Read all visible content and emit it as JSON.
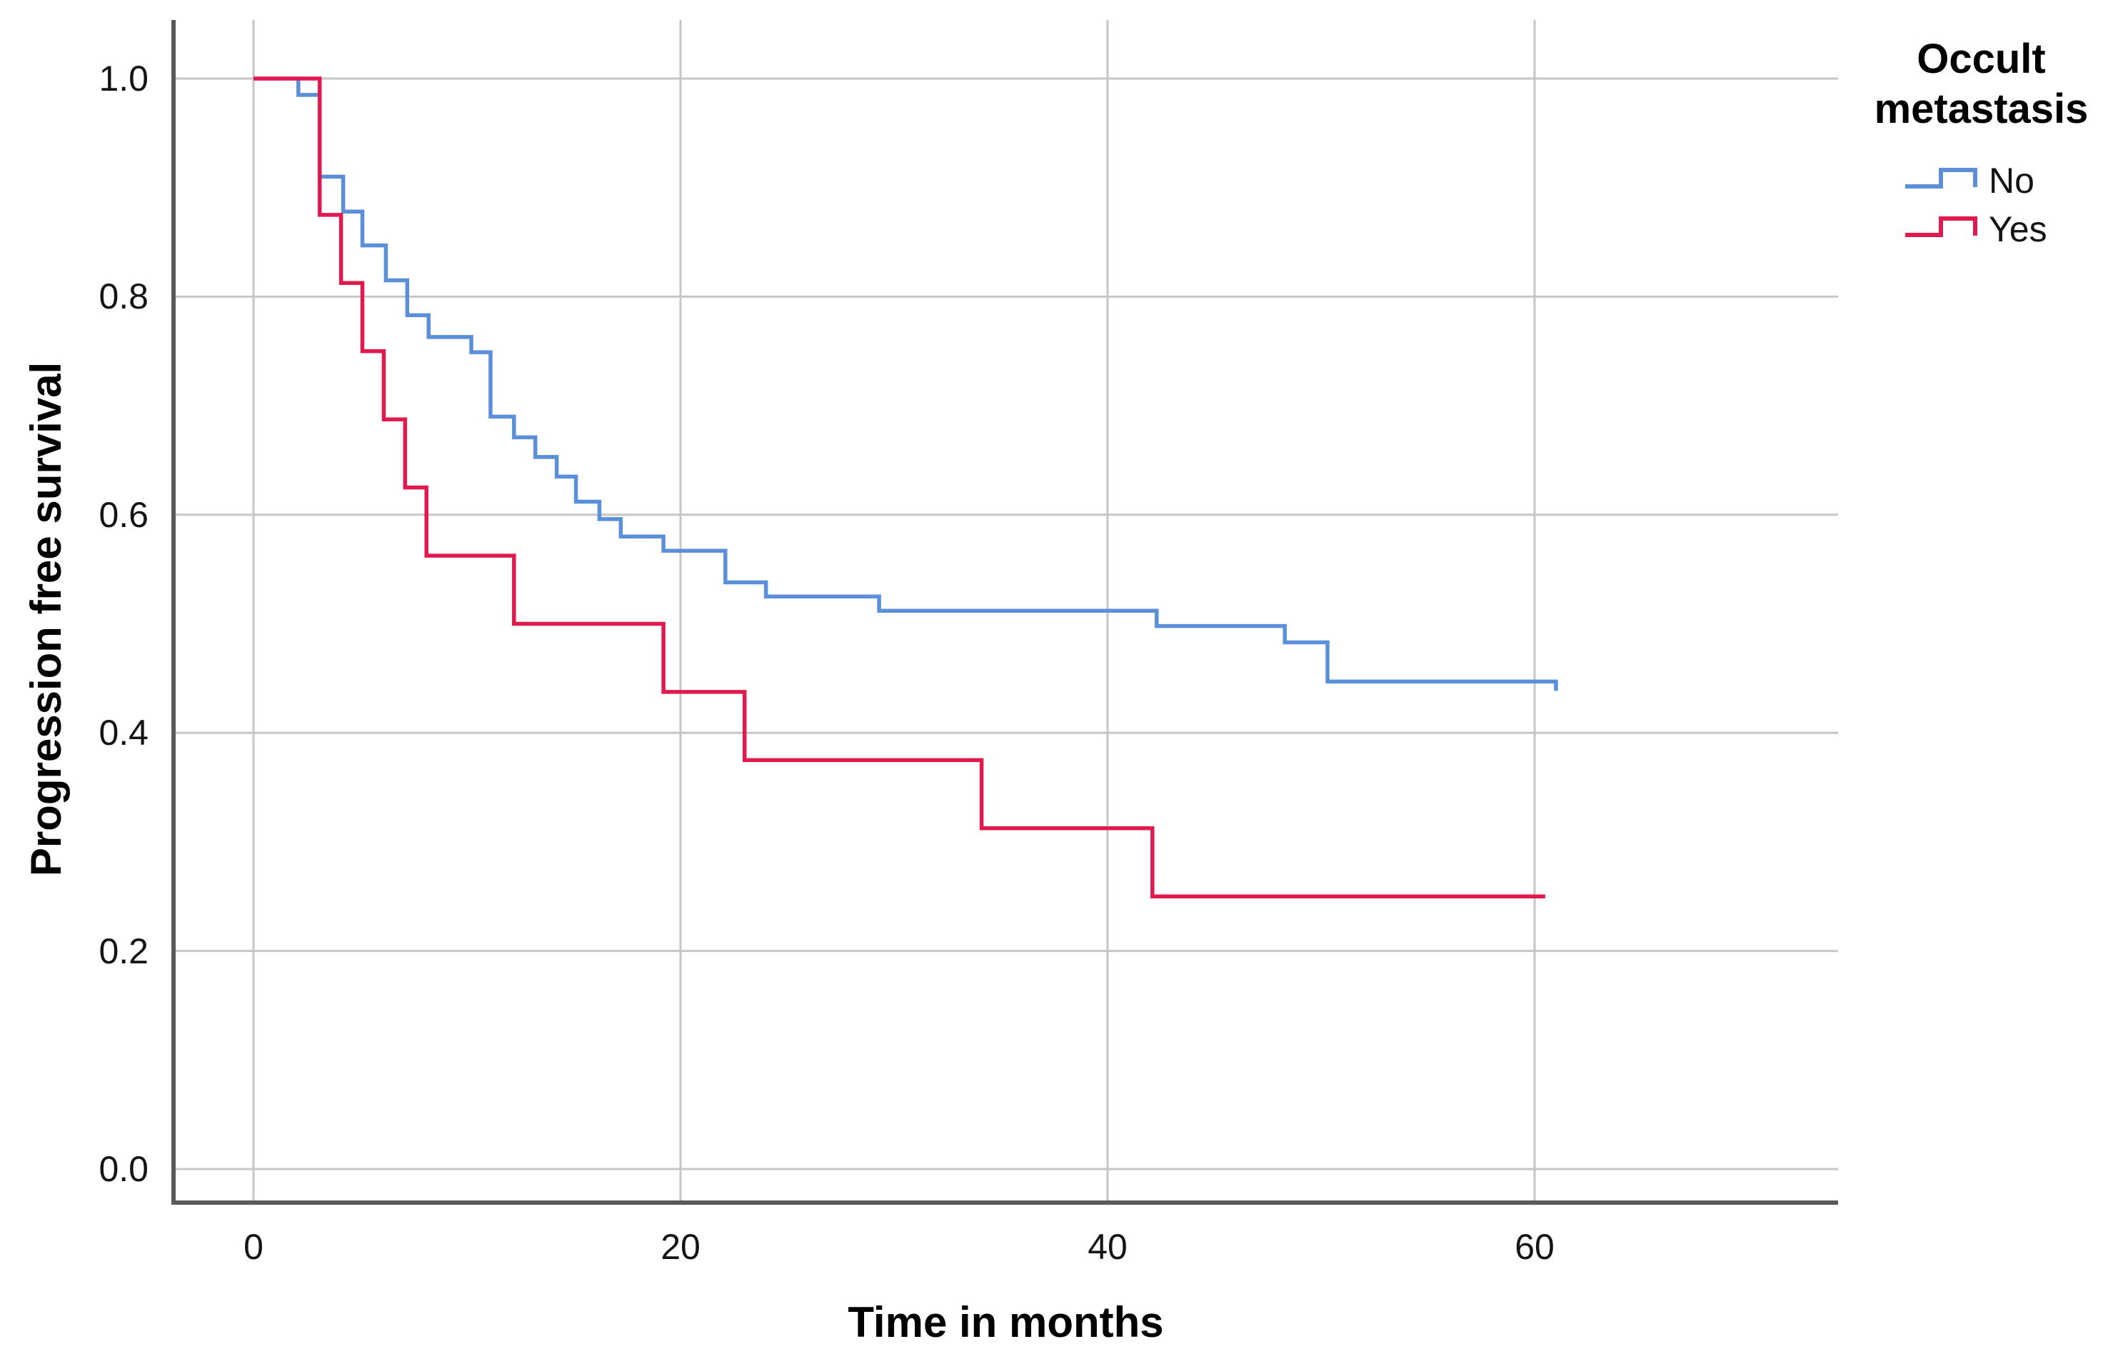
{
  "figure": {
    "background": "#ffffff",
    "text_color": "#141414",
    "grid_color": "#c6c6c6",
    "frame_color": "#595959"
  },
  "chart_data": {
    "type": "line",
    "subtype": "kaplan-meier-step-survival",
    "title": "",
    "xlabel": "Time in months",
    "ylabel": "Progression free survival",
    "xlim": [
      -3.75,
      74.2
    ],
    "ylim": [
      -0.031,
      1.054
    ],
    "grid": true,
    "xticks": [
      {
        "v": 0,
        "label": "0"
      },
      {
        "v": 20,
        "label": "20"
      },
      {
        "v": 40,
        "label": "40"
      },
      {
        "v": 60,
        "label": "60"
      }
    ],
    "yticks": [
      {
        "v": 0.0,
        "label": "0.0"
      },
      {
        "v": 0.2,
        "label": "0.2"
      },
      {
        "v": 0.4,
        "label": "0.4"
      },
      {
        "v": 0.6,
        "label": "0.6"
      },
      {
        "v": 0.8,
        "label": "0.8"
      },
      {
        "v": 1.0,
        "label": "1.0"
      }
    ],
    "legend": {
      "title": "Occult metastasis",
      "title_lines": [
        "Occult",
        "metastasis"
      ],
      "position": "top-right",
      "entries": [
        {
          "label": "No",
          "color": "#5B8FD9"
        },
        {
          "label": "Yes",
          "color": "#E0194E"
        }
      ]
    },
    "series": [
      {
        "name": "No",
        "color": "#5B8FD9",
        "step": "post",
        "end_time": 61.0,
        "end_tick": true,
        "points": [
          [
            0.0,
            1.0
          ],
          [
            2.1,
            0.985
          ],
          [
            3.1,
            0.91
          ],
          [
            4.2,
            0.878
          ],
          [
            5.1,
            0.847
          ],
          [
            6.2,
            0.815
          ],
          [
            7.2,
            0.783
          ],
          [
            8.2,
            0.763
          ],
          [
            10.2,
            0.749
          ],
          [
            11.1,
            0.69
          ],
          [
            12.2,
            0.671
          ],
          [
            13.2,
            0.653
          ],
          [
            14.2,
            0.635
          ],
          [
            15.1,
            0.612
          ],
          [
            16.2,
            0.596
          ],
          [
            17.2,
            0.58
          ],
          [
            19.2,
            0.567
          ],
          [
            22.1,
            0.538
          ],
          [
            24.0,
            0.525
          ],
          [
            29.3,
            0.512
          ],
          [
            42.3,
            0.498
          ],
          [
            48.3,
            0.483
          ],
          [
            50.3,
            0.447
          ]
        ]
      },
      {
        "name": "Yes",
        "color": "#E0194E",
        "step": "post",
        "end_time": 60.5,
        "end_tick": false,
        "points": [
          [
            0.0,
            1.0
          ],
          [
            3.1,
            0.875
          ],
          [
            4.1,
            0.8125
          ],
          [
            5.1,
            0.75
          ],
          [
            6.1,
            0.6875
          ],
          [
            7.1,
            0.625
          ],
          [
            8.1,
            0.5625
          ],
          [
            12.2,
            0.5
          ],
          [
            19.2,
            0.4375
          ],
          [
            23.0,
            0.375
          ],
          [
            34.1,
            0.3125
          ],
          [
            42.1,
            0.25
          ]
        ]
      }
    ]
  }
}
